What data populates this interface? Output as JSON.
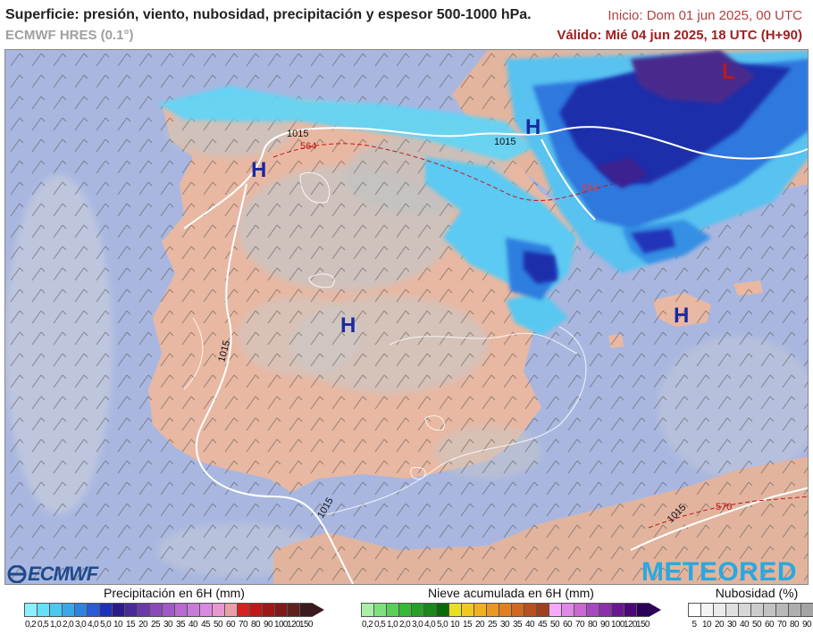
{
  "header": {
    "title": "Superficie: presión, viento, nubosidad, precipitación y espesor 500-1000 hPa.",
    "model": "ECMWF HRES (0.1°)",
    "init": "Inicio: Dom 01 jun 2025, 00 UTC",
    "valid": "Válido: Mié 04 jun 2025, 18 UTC (H+90)"
  },
  "map": {
    "region": "Península Ibérica",
    "high_labels": [
      "H",
      "H",
      "H",
      "H"
    ],
    "low_labels": [
      "L"
    ],
    "isobar_labels": [
      "1015",
      "1015",
      "1015",
      "1015",
      "1015"
    ],
    "thickness_labels": [
      "564",
      "564",
      "570"
    ],
    "colors": {
      "sea": "#a9b7e0",
      "land": "#e8b8a0",
      "cloud": "#c8c8c8",
      "precip_light": "#5fd0f0",
      "precip_heavy": "#2a2a9a",
      "precip_extreme": "#4a2a8a",
      "high": "#1a2aa0",
      "low": "#c01818",
      "thickness": "#c01818"
    }
  },
  "logos": {
    "left": "ECMWF",
    "right": "METEORED"
  },
  "legend_precip": {
    "title": "Precipitación en 6H (mm)",
    "ticks": [
      "0,2",
      "0,5",
      "1,0",
      "2,0",
      "3,0",
      "4,0",
      "5,0",
      "10",
      "15",
      "20",
      "25",
      "30",
      "35",
      "40",
      "45",
      "50",
      "60",
      "70",
      "80",
      "90",
      "100",
      "120",
      "150"
    ],
    "colors": [
      "#8af0ff",
      "#64e0f8",
      "#4ac8f0",
      "#3aa8e8",
      "#2e82e0",
      "#2a5ad8",
      "#1e30b8",
      "#2a1a8a",
      "#4a2a98",
      "#6a3aa8",
      "#8a4ab8",
      "#a05ac8",
      "#b86ad0",
      "#c87ad8",
      "#d88ae0",
      "#e898d0",
      "#e8a0a8",
      "#d82020",
      "#c01818",
      "#a01818",
      "#801a1a",
      "#602020",
      "#3a1a1a"
    ]
  },
  "legend_snow": {
    "title": "Nieve acumulada en 6H (mm)",
    "ticks": [
      "0,2",
      "0,5",
      "1,0",
      "2,0",
      "3,0",
      "4,0",
      "5,0",
      "10",
      "15",
      "20",
      "25",
      "30",
      "35",
      "40",
      "45",
      "50",
      "60",
      "70",
      "80",
      "90",
      "100",
      "120",
      "150"
    ],
    "colors": [
      "#a8f0a8",
      "#80e080",
      "#5ad05a",
      "#38b838",
      "#28a028",
      "#1a881a",
      "#0a6a0a",
      "#e8e020",
      "#f0c820",
      "#f0b020",
      "#e89820",
      "#e08020",
      "#d06820",
      "#b85020",
      "#a04020",
      "#f8a8f8",
      "#e088e8",
      "#c868d0",
      "#a848c0",
      "#8a30a8",
      "#6a1890",
      "#4a0878",
      "#2a0058"
    ]
  },
  "legend_cloud": {
    "title": "Nubosidad (%)",
    "ticks": [
      "5",
      "10",
      "20",
      "30",
      "40",
      "50",
      "60",
      "70",
      "80",
      "90"
    ],
    "colors": [
      "#ffffff",
      "#f4f4f4",
      "#ebebeb",
      "#e0e0e0",
      "#d6d6d6",
      "#cccccc",
      "#c2c2c2",
      "#b8b8b8",
      "#aeaeae",
      "#a4a4a4"
    ]
  }
}
